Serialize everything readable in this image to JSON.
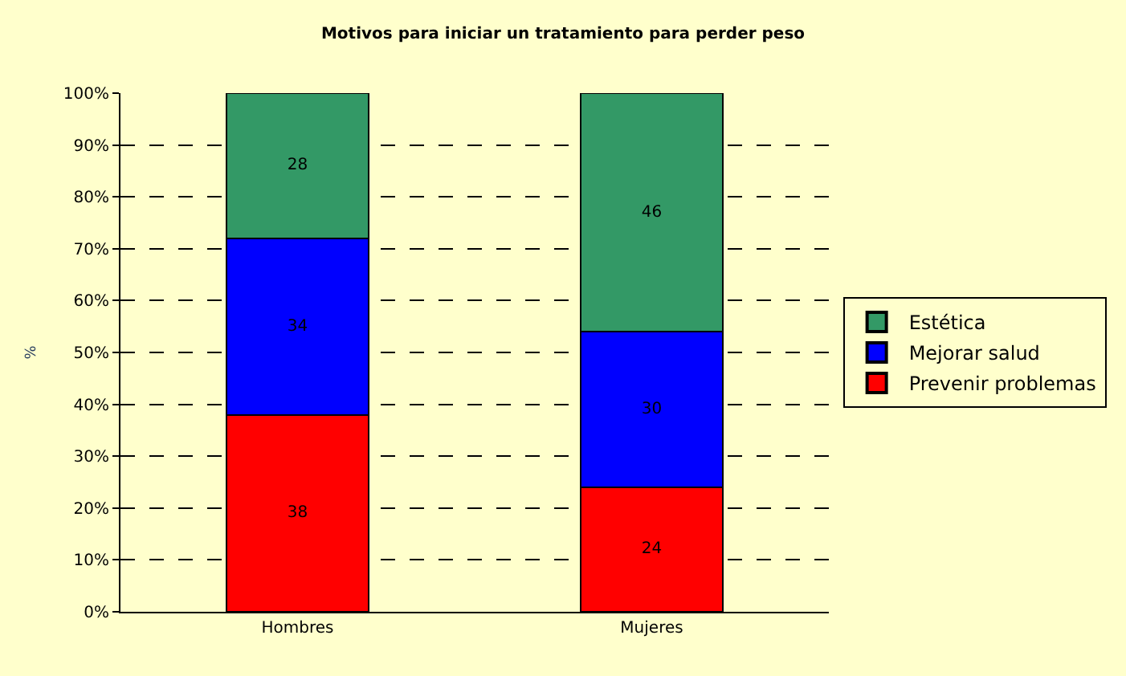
{
  "chart_data": {
    "type": "bar",
    "title": "Motivos para iniciar un tratamiento para perder peso",
    "ylabel": "%",
    "categories": [
      "Hombres",
      "Mujeres"
    ],
    "series": [
      {
        "name": "Prevenir problemas",
        "color": "#ff0000",
        "values": [
          38,
          24
        ]
      },
      {
        "name": "Mejorar salud",
        "color": "#0000ff",
        "values": [
          34,
          30
        ]
      },
      {
        "name": "Estética",
        "color": "#339966",
        "values": [
          28,
          46
        ]
      }
    ],
    "stacked": true,
    "data_labels": true,
    "ylim": [
      0,
      100
    ],
    "yticks": [
      {
        "value": 0,
        "label": "0%"
      },
      {
        "value": 10,
        "label": "10%"
      },
      {
        "value": 20,
        "label": "20%"
      },
      {
        "value": 30,
        "label": "30%"
      },
      {
        "value": 40,
        "label": "40%"
      },
      {
        "value": 50,
        "label": "50%"
      },
      {
        "value": 60,
        "label": "60%"
      },
      {
        "value": 70,
        "label": "70%"
      },
      {
        "value": 80,
        "label": "80%"
      },
      {
        "value": 90,
        "label": "90%"
      },
      {
        "value": 100,
        "label": "100%"
      }
    ],
    "grid": "y",
    "legend": "right"
  }
}
